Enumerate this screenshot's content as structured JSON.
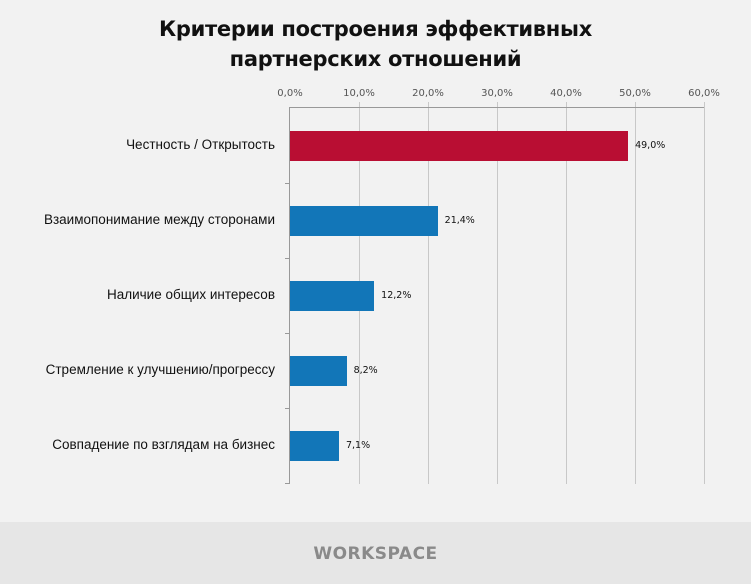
{
  "header": {
    "title_line1": "Критерии построения эффективных",
    "title_line2": "партнерских отношений"
  },
  "chart_data": {
    "type": "bar",
    "orientation": "horizontal",
    "title": "Критерии построения эффективных партнерских отношений",
    "xlabel": "",
    "ylabel": "",
    "xlim": [
      0,
      60
    ],
    "x_ticks": [
      "0,0%",
      "10,0%",
      "20,0%",
      "30,0%",
      "40,0%",
      "50,0%",
      "60,0%"
    ],
    "grid": true,
    "axis_position": "top",
    "categories": [
      "Честность / Открытость",
      "Взаимопонимание между сторонами",
      "Наличие общих интересов",
      "Стремление к улучшению/прогрессу",
      "Совпадение по взглядам на бизнес"
    ],
    "values": [
      49.0,
      21.4,
      12.2,
      8.2,
      7.1
    ],
    "value_labels": [
      "49,0%",
      "21,4%",
      "12,2%",
      "8,2%",
      "7,1%"
    ],
    "colors": [
      "#b90e33",
      "#1276b8",
      "#1276b8",
      "#1276b8",
      "#1276b8"
    ]
  },
  "footer": {
    "logo": "WORKSPACE"
  }
}
